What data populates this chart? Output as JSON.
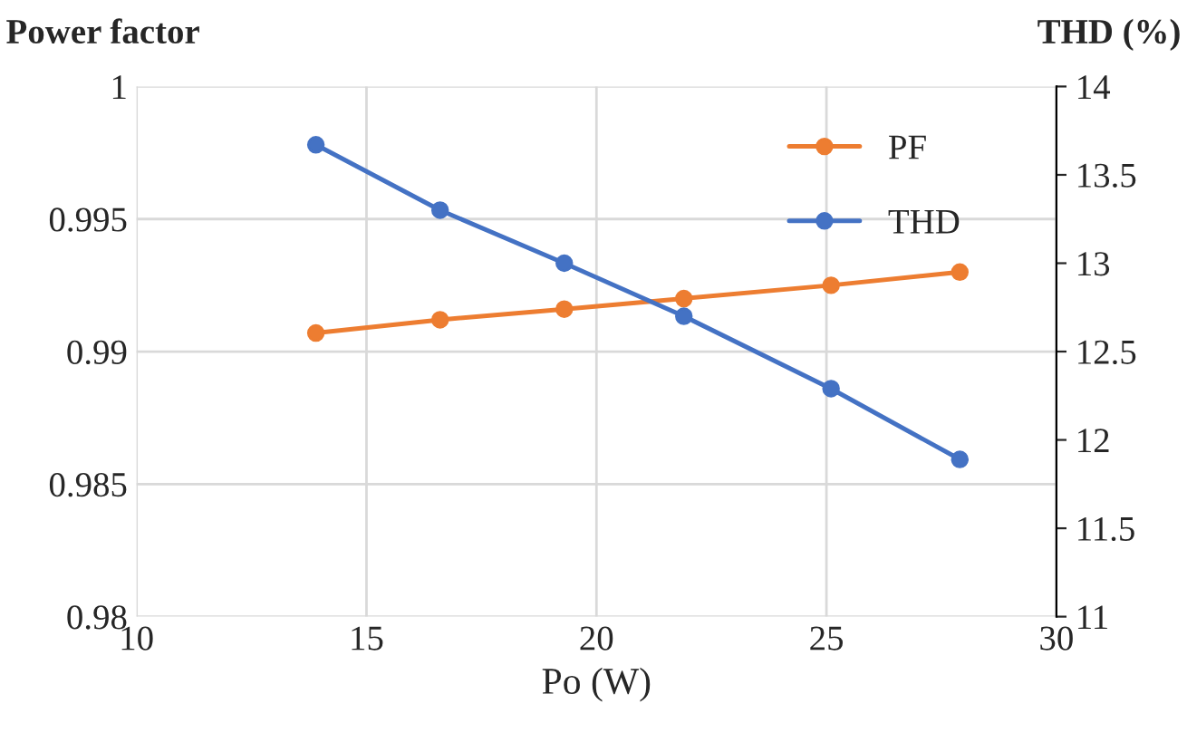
{
  "chart_data": {
    "type": "line",
    "xlabel": "Po (W)",
    "ylabel": "Power factor",
    "y2label": "THD (%)",
    "x": [
      13.9,
      16.6,
      19.3,
      21.9,
      25.1,
      27.9
    ],
    "series": [
      {
        "name": "PF",
        "color": "#ed7d31",
        "values": [
          0.9907,
          0.9912,
          0.9916,
          0.992,
          0.9925,
          0.993
        ]
      },
      {
        "name": "THD",
        "color": "#4472c4",
        "values": [
          13.67,
          13.3,
          13.0,
          12.7,
          12.29,
          11.89
        ],
        "axis": "y2"
      }
    ],
    "xlim": [
      10,
      30
    ],
    "xticks": [
      10,
      15,
      20,
      25,
      30
    ],
    "ylim": [
      0.98,
      1
    ],
    "yticks": [
      0.98,
      0.985,
      0.99,
      0.995,
      1
    ],
    "y2lim": [
      11,
      14
    ],
    "y2ticks": [
      11,
      11.5,
      12,
      12.5,
      13,
      13.5,
      14
    ],
    "grid": true,
    "legend": "top right",
    "marker": "circle"
  }
}
